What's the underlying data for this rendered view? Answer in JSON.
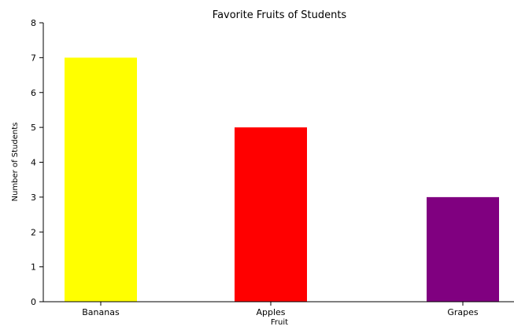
{
  "chart_data": {
    "type": "bar",
    "title": "Favorite Fruits of Students",
    "xlabel": "Fruit",
    "ylabel": "Number of Students",
    "categories": [
      "Bananas",
      "Apples",
      "Grapes"
    ],
    "values": [
      7,
      5,
      3
    ],
    "colors": [
      "#ffff00",
      "#ff0000",
      "#800080"
    ],
    "ylim": [
      0,
      8
    ],
    "yticks": [
      0,
      1,
      2,
      3,
      4,
      5,
      6,
      7,
      8
    ],
    "grid": false,
    "legend": "none"
  }
}
